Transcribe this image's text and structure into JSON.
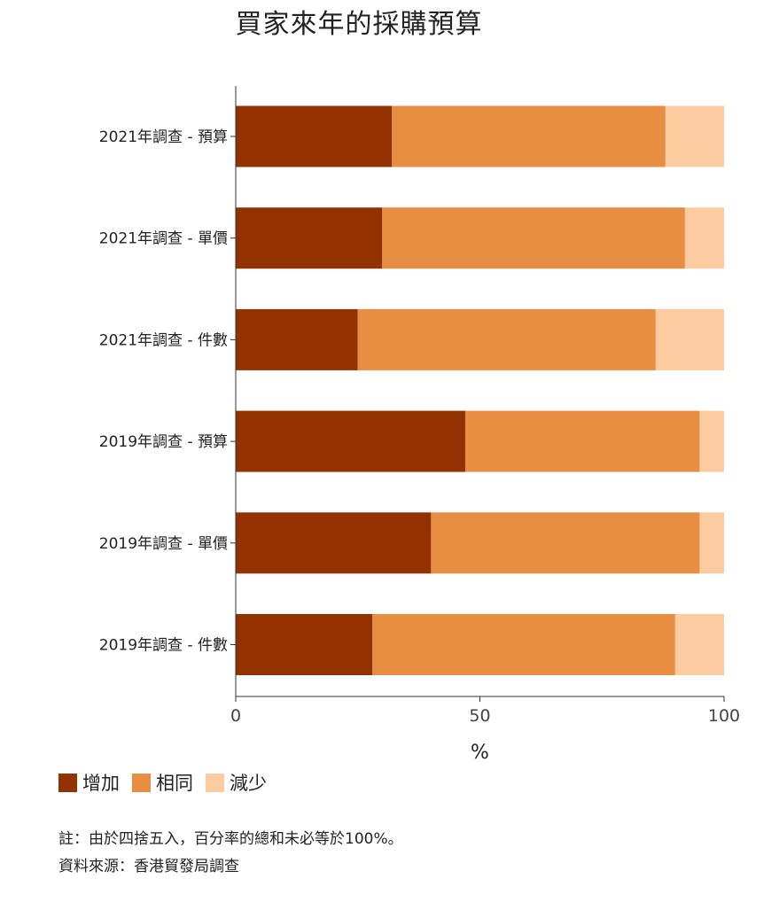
{
  "chart_data": {
    "type": "bar",
    "orientation": "horizontal",
    "stacked": true,
    "title": "買家來年的採購預算",
    "xlabel": "%",
    "ylabel": "",
    "xlim": [
      0,
      100
    ],
    "xticks": [
      "0",
      "50",
      "100"
    ],
    "categories": [
      "2021年調查 - 預算",
      "2021年調查 - 單價",
      "2021年調查 - 件數",
      "2019年調查 - 預算",
      "2019年調查 - 單價",
      "2019年調查 - 件數"
    ],
    "series": [
      {
        "name": "增加",
        "color": "#933100",
        "values": [
          32,
          30,
          25,
          47,
          40,
          28
        ]
      },
      {
        "name": "相同",
        "color": "#E88E43",
        "values": [
          56,
          62,
          61,
          48,
          55,
          62
        ]
      },
      {
        "name": "減少",
        "color": "#FDCBA0",
        "values": [
          12,
          8,
          14,
          5,
          5,
          10
        ]
      }
    ],
    "legend_position": "bottom-left",
    "grid": false
  },
  "notes": {
    "note": "註：由於四捨五入，百分率的總和未必等於100%。",
    "source": "資料來源：香港貿發局調查"
  }
}
